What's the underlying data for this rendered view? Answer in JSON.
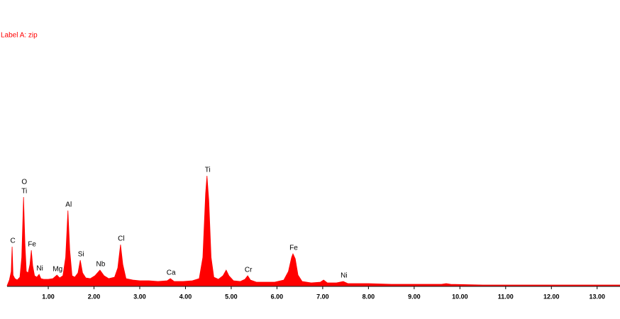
{
  "chart_data": {
    "type": "area",
    "title": "Label A: zip",
    "color": "#ff0000",
    "xlim": [
      0.1,
      13.5
    ],
    "ylim": [
      0,
      400
    ],
    "xticks": [
      {
        "value": 1,
        "label": "1.00"
      },
      {
        "value": 2,
        "label": "2.00"
      },
      {
        "value": 3,
        "label": "3.00"
      },
      {
        "value": 4,
        "label": "4.00"
      },
      {
        "value": 5,
        "label": "5.00"
      },
      {
        "value": 6,
        "label": "6.00"
      },
      {
        "value": 7,
        "label": "7.00"
      },
      {
        "value": 8,
        "label": "8.00"
      },
      {
        "value": 9,
        "label": "9.00"
      },
      {
        "value": 10,
        "label": "10.00"
      },
      {
        "value": 11,
        "label": "11.00"
      },
      {
        "value": 12,
        "label": "12.00"
      },
      {
        "value": 13,
        "label": "13.00"
      }
    ],
    "x": [
      0.1,
      0.15,
      0.19,
      0.21,
      0.23,
      0.27,
      0.32,
      0.38,
      0.42,
      0.46,
      0.49,
      0.52,
      0.56,
      0.6,
      0.63,
      0.66,
      0.7,
      0.75,
      0.8,
      0.84,
      0.9,
      1.0,
      1.1,
      1.19,
      1.25,
      1.32,
      1.38,
      1.43,
      1.47,
      1.52,
      1.58,
      1.65,
      1.7,
      1.75,
      1.82,
      1.92,
      2.02,
      2.13,
      2.22,
      2.32,
      2.45,
      2.52,
      2.58,
      2.63,
      2.7,
      2.85,
      3.0,
      3.2,
      3.4,
      3.6,
      3.67,
      3.75,
      3.95,
      4.15,
      4.3,
      4.38,
      4.44,
      4.47,
      4.51,
      4.56,
      4.62,
      4.72,
      4.82,
      4.89,
      4.95,
      5.05,
      5.2,
      5.3,
      5.36,
      5.42,
      5.55,
      5.75,
      5.95,
      6.15,
      6.25,
      6.32,
      6.35,
      6.4,
      6.46,
      6.55,
      6.75,
      6.95,
      7.02,
      7.1,
      7.3,
      7.45,
      7.55,
      8.0,
      8.5,
      9.0,
      9.6,
      9.7,
      9.8,
      10.5,
      11.5,
      12.5,
      13.5
    ],
    "values": [
      0,
      8,
      20,
      55,
      15,
      10,
      8,
      12,
      40,
      125,
      60,
      20,
      18,
      30,
      50,
      28,
      14,
      12,
      16,
      10,
      9,
      9,
      10,
      15,
      11,
      14,
      40,
      106,
      50,
      14,
      12,
      18,
      36,
      18,
      11,
      10,
      14,
      22,
      14,
      10,
      12,
      25,
      58,
      30,
      10,
      8,
      7,
      7,
      6,
      7,
      10,
      6,
      6,
      7,
      10,
      40,
      130,
      155,
      120,
      40,
      12,
      9,
      14,
      22,
      14,
      7,
      6,
      9,
      14,
      8,
      5,
      5,
      5,
      8,
      20,
      40,
      45,
      38,
      15,
      6,
      4,
      5,
      8,
      4,
      4,
      6,
      3,
      3,
      2,
      2,
      2,
      3,
      2,
      1,
      1,
      1,
      1
    ],
    "peaks": [
      {
        "label": "C",
        "x": 0.21,
        "y": 55
      },
      {
        "label": "Ti",
        "x": 0.46,
        "y": 125
      },
      {
        "label": "O",
        "x": 0.46,
        "y": 125
      },
      {
        "label": "Fe",
        "x": 0.63,
        "y": 50
      },
      {
        "label": "Ni",
        "x": 0.8,
        "y": 16
      },
      {
        "label": "Mg",
        "x": 1.19,
        "y": 15
      },
      {
        "label": "Al",
        "x": 1.43,
        "y": 106
      },
      {
        "label": "Si",
        "x": 1.7,
        "y": 36
      },
      {
        "label": "Nb",
        "x": 2.13,
        "y": 22
      },
      {
        "label": "Cl",
        "x": 2.58,
        "y": 58
      },
      {
        "label": "Ca",
        "x": 3.67,
        "y": 10
      },
      {
        "label": "Ti",
        "x": 4.47,
        "y": 155
      },
      {
        "label": "Cr",
        "x": 5.36,
        "y": 14
      },
      {
        "label": "Fe",
        "x": 6.35,
        "y": 45
      },
      {
        "label": "Ni",
        "x": 7.45,
        "y": 6
      }
    ]
  }
}
